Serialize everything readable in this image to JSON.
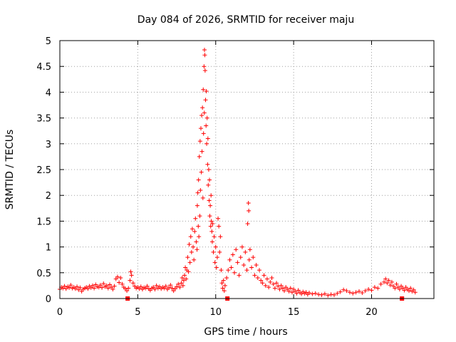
{
  "chart_data": {
    "type": "scatter",
    "title": "Day 084 of 2026, SRMTID for receiver maju",
    "xlabel": "GPS time / hours",
    "ylabel": "SRMTID / TECUs",
    "xlim": [
      0,
      24
    ],
    "ylim": [
      0,
      5
    ],
    "xticks": [
      0,
      5,
      10,
      15,
      20
    ],
    "xtick_labels": [
      "0",
      "5",
      "10",
      "15",
      "20"
    ],
    "yticks": [
      0,
      0.5,
      1,
      1.5,
      2,
      2.5,
      3,
      3.5,
      4,
      4.5,
      5
    ],
    "ytick_labels": [
      "0",
      "0.5",
      "1",
      "1.5",
      "2",
      "2.5",
      "3",
      "3.5",
      "4",
      "4.5",
      "5"
    ],
    "grid": true,
    "series": [
      {
        "name": "SRMTID",
        "marker": "plus",
        "color": "#ff0000",
        "points": [
          [
            0.0,
            0.18
          ],
          [
            0.1,
            0.22
          ],
          [
            0.2,
            0.2
          ],
          [
            0.3,
            0.24
          ],
          [
            0.4,
            0.19
          ],
          [
            0.5,
            0.23
          ],
          [
            0.6,
            0.21
          ],
          [
            0.7,
            0.26
          ],
          [
            0.8,
            0.2
          ],
          [
            0.9,
            0.22
          ],
          [
            1.0,
            0.19
          ],
          [
            1.1,
            0.23
          ],
          [
            1.2,
            0.17
          ],
          [
            1.3,
            0.21
          ],
          [
            1.4,
            0.14
          ],
          [
            1.5,
            0.18
          ],
          [
            1.6,
            0.2
          ],
          [
            1.7,
            0.22
          ],
          [
            1.8,
            0.19
          ],
          [
            1.9,
            0.24
          ],
          [
            2.0,
            0.21
          ],
          [
            2.1,
            0.25
          ],
          [
            2.2,
            0.2
          ],
          [
            2.3,
            0.27
          ],
          [
            2.4,
            0.23
          ],
          [
            2.5,
            0.22
          ],
          [
            2.6,
            0.26
          ],
          [
            2.7,
            0.21
          ],
          [
            2.8,
            0.29
          ],
          [
            2.9,
            0.23
          ],
          [
            3.0,
            0.25
          ],
          [
            3.1,
            0.2
          ],
          [
            3.2,
            0.27
          ],
          [
            3.3,
            0.22
          ],
          [
            3.4,
            0.18
          ],
          [
            3.5,
            0.24
          ],
          [
            3.6,
            0.38
          ],
          [
            3.7,
            0.42
          ],
          [
            3.8,
            0.31
          ],
          [
            3.9,
            0.4
          ],
          [
            4.0,
            0.28
          ],
          [
            4.1,
            0.22
          ],
          [
            4.2,
            0.19
          ],
          [
            4.3,
            0.15
          ],
          [
            4.4,
            0.2
          ],
          [
            4.5,
            0.35
          ],
          [
            4.55,
            0.52
          ],
          [
            4.6,
            0.45
          ],
          [
            4.7,
            0.3
          ],
          [
            4.8,
            0.24
          ],
          [
            4.9,
            0.2
          ],
          [
            5.0,
            0.22
          ],
          [
            5.1,
            0.19
          ],
          [
            5.2,
            0.23
          ],
          [
            5.3,
            0.18
          ],
          [
            5.4,
            0.21
          ],
          [
            5.5,
            0.2
          ],
          [
            5.6,
            0.24
          ],
          [
            5.7,
            0.19
          ],
          [
            5.8,
            0.16
          ],
          [
            5.9,
            0.2
          ],
          [
            6.0,
            0.22
          ],
          [
            6.1,
            0.18
          ],
          [
            6.2,
            0.25
          ],
          [
            6.3,
            0.2
          ],
          [
            6.4,
            0.23
          ],
          [
            6.5,
            0.19
          ],
          [
            6.6,
            0.22
          ],
          [
            6.7,
            0.2
          ],
          [
            6.8,
            0.24
          ],
          [
            6.9,
            0.18
          ],
          [
            7.0,
            0.21
          ],
          [
            7.1,
            0.26
          ],
          [
            7.2,
            0.2
          ],
          [
            7.3,
            0.15
          ],
          [
            7.4,
            0.19
          ],
          [
            7.5,
            0.23
          ],
          [
            7.6,
            0.28
          ],
          [
            7.7,
            0.22
          ],
          [
            7.8,
            0.3
          ],
          [
            7.85,
            0.4
          ],
          [
            7.9,
            0.25
          ],
          [
            7.95,
            0.35
          ],
          [
            8.0,
            0.45
          ],
          [
            8.05,
            0.6
          ],
          [
            8.1,
            0.38
          ],
          [
            8.15,
            0.55
          ],
          [
            8.2,
            0.8
          ],
          [
            8.25,
            0.52
          ],
          [
            8.3,
            1.05
          ],
          [
            8.35,
            0.7
          ],
          [
            8.4,
            1.2
          ],
          [
            8.45,
            0.9
          ],
          [
            8.5,
            1.35
          ],
          [
            8.55,
            1.0
          ],
          [
            8.6,
            0.75
          ],
          [
            8.65,
            1.3
          ],
          [
            8.7,
            1.55
          ],
          [
            8.75,
            1.1
          ],
          [
            8.8,
            0.95
          ],
          [
            8.82,
            1.8
          ],
          [
            8.85,
            2.05
          ],
          [
            8.88,
            1.4
          ],
          [
            8.9,
            2.3
          ],
          [
            8.92,
            1.2
          ],
          [
            8.95,
            2.75
          ],
          [
            8.98,
            1.6
          ],
          [
            9.0,
            3.05
          ],
          [
            9.02,
            2.1
          ],
          [
            9.05,
            3.3
          ],
          [
            9.08,
            2.45
          ],
          [
            9.1,
            3.55
          ],
          [
            9.12,
            2.85
          ],
          [
            9.15,
            3.7
          ],
          [
            9.18,
            1.95
          ],
          [
            9.2,
            4.05
          ],
          [
            9.22,
            3.2
          ],
          [
            9.25,
            4.5
          ],
          [
            9.27,
            3.6
          ],
          [
            9.28,
            4.82
          ],
          [
            9.3,
            4.72
          ],
          [
            9.32,
            4.42
          ],
          [
            9.35,
            3.85
          ],
          [
            9.38,
            3.35
          ],
          [
            9.4,
            4.02
          ],
          [
            9.42,
            3.0
          ],
          [
            9.45,
            3.5
          ],
          [
            9.48,
            2.6
          ],
          [
            9.5,
            3.1
          ],
          [
            9.52,
            2.2
          ],
          [
            9.55,
            2.5
          ],
          [
            9.58,
            1.9
          ],
          [
            9.6,
            2.3
          ],
          [
            9.62,
            1.6
          ],
          [
            9.65,
            1.8
          ],
          [
            9.68,
            1.4
          ],
          [
            9.7,
            2.0
          ],
          [
            9.72,
            1.5
          ],
          [
            9.75,
            1.3
          ],
          [
            9.78,
            1.1
          ],
          [
            9.8,
            1.45
          ],
          [
            9.85,
            0.9
          ],
          [
            9.9,
            1.2
          ],
          [
            9.95,
            0.7
          ],
          [
            10.0,
            1.0
          ],
          [
            10.05,
            0.6
          ],
          [
            10.1,
            0.8
          ],
          [
            10.15,
            1.55
          ],
          [
            10.2,
            1.4
          ],
          [
            10.25,
            0.9
          ],
          [
            10.3,
            1.2
          ],
          [
            10.35,
            0.55
          ],
          [
            10.4,
            0.3
          ],
          [
            10.45,
            0.2
          ],
          [
            10.5,
            0.35
          ],
          [
            10.55,
            0.15
          ],
          [
            10.6,
            0.25
          ],
          [
            10.7,
            0.4
          ],
          [
            10.8,
            0.55
          ],
          [
            10.9,
            0.75
          ],
          [
            11.0,
            0.6
          ],
          [
            11.1,
            0.85
          ],
          [
            11.2,
            0.5
          ],
          [
            11.3,
            0.95
          ],
          [
            11.4,
            0.7
          ],
          [
            11.5,
            0.45
          ],
          [
            11.6,
            0.8
          ],
          [
            11.7,
            1.0
          ],
          [
            11.8,
            0.65
          ],
          [
            11.9,
            0.9
          ],
          [
            12.0,
            0.55
          ],
          [
            12.05,
            1.45
          ],
          [
            12.1,
            1.85
          ],
          [
            12.12,
            1.7
          ],
          [
            12.15,
            0.75
          ],
          [
            12.2,
            0.95
          ],
          [
            12.3,
            0.6
          ],
          [
            12.4,
            0.8
          ],
          [
            12.5,
            0.45
          ],
          [
            12.6,
            0.65
          ],
          [
            12.7,
            0.4
          ],
          [
            12.8,
            0.55
          ],
          [
            12.9,
            0.35
          ],
          [
            13.0,
            0.3
          ],
          [
            13.1,
            0.45
          ],
          [
            13.2,
            0.25
          ],
          [
            13.3,
            0.38
          ],
          [
            13.4,
            0.22
          ],
          [
            13.5,
            0.32
          ],
          [
            13.6,
            0.4
          ],
          [
            13.7,
            0.28
          ],
          [
            13.8,
            0.2
          ],
          [
            13.9,
            0.3
          ],
          [
            14.0,
            0.24
          ],
          [
            14.1,
            0.18
          ],
          [
            14.2,
            0.25
          ],
          [
            14.3,
            0.2
          ],
          [
            14.4,
            0.15
          ],
          [
            14.5,
            0.22
          ],
          [
            14.6,
            0.18
          ],
          [
            14.7,
            0.14
          ],
          [
            14.8,
            0.2
          ],
          [
            14.9,
            0.12
          ],
          [
            15.0,
            0.18
          ],
          [
            15.1,
            0.14
          ],
          [
            15.2,
            0.1
          ],
          [
            15.3,
            0.16
          ],
          [
            15.4,
            0.12
          ],
          [
            15.5,
            0.09
          ],
          [
            15.6,
            0.13
          ],
          [
            15.7,
            0.1
          ],
          [
            15.8,
            0.12
          ],
          [
            15.9,
            0.08
          ],
          [
            16.0,
            0.11
          ],
          [
            16.2,
            0.09
          ],
          [
            16.4,
            0.1
          ],
          [
            16.6,
            0.08
          ],
          [
            16.8,
            0.07
          ],
          [
            17.0,
            0.09
          ],
          [
            17.2,
            0.06
          ],
          [
            17.4,
            0.08
          ],
          [
            17.6,
            0.07
          ],
          [
            17.8,
            0.1
          ],
          [
            18.0,
            0.13
          ],
          [
            18.2,
            0.17
          ],
          [
            18.4,
            0.15
          ],
          [
            18.6,
            0.12
          ],
          [
            18.8,
            0.1
          ],
          [
            19.0,
            0.12
          ],
          [
            19.2,
            0.14
          ],
          [
            19.4,
            0.11
          ],
          [
            19.6,
            0.15
          ],
          [
            19.8,
            0.18
          ],
          [
            20.0,
            0.16
          ],
          [
            20.2,
            0.22
          ],
          [
            20.4,
            0.2
          ],
          [
            20.6,
            0.28
          ],
          [
            20.8,
            0.32
          ],
          [
            20.9,
            0.38
          ],
          [
            21.0,
            0.3
          ],
          [
            21.1,
            0.35
          ],
          [
            21.2,
            0.26
          ],
          [
            21.3,
            0.32
          ],
          [
            21.4,
            0.24
          ],
          [
            21.5,
            0.2
          ],
          [
            21.6,
            0.28
          ],
          [
            21.7,
            0.22
          ],
          [
            21.8,
            0.18
          ],
          [
            21.9,
            0.24
          ],
          [
            22.0,
            0.2
          ],
          [
            22.1,
            0.16
          ],
          [
            22.2,
            0.22
          ],
          [
            22.3,
            0.18
          ],
          [
            22.4,
            0.15
          ],
          [
            22.5,
            0.2
          ],
          [
            22.6,
            0.14
          ],
          [
            22.7,
            0.17
          ],
          [
            22.8,
            0.12
          ]
        ]
      }
    ],
    "gap_markers_x": [
      4.35,
      10.75,
      21.95
    ]
  }
}
